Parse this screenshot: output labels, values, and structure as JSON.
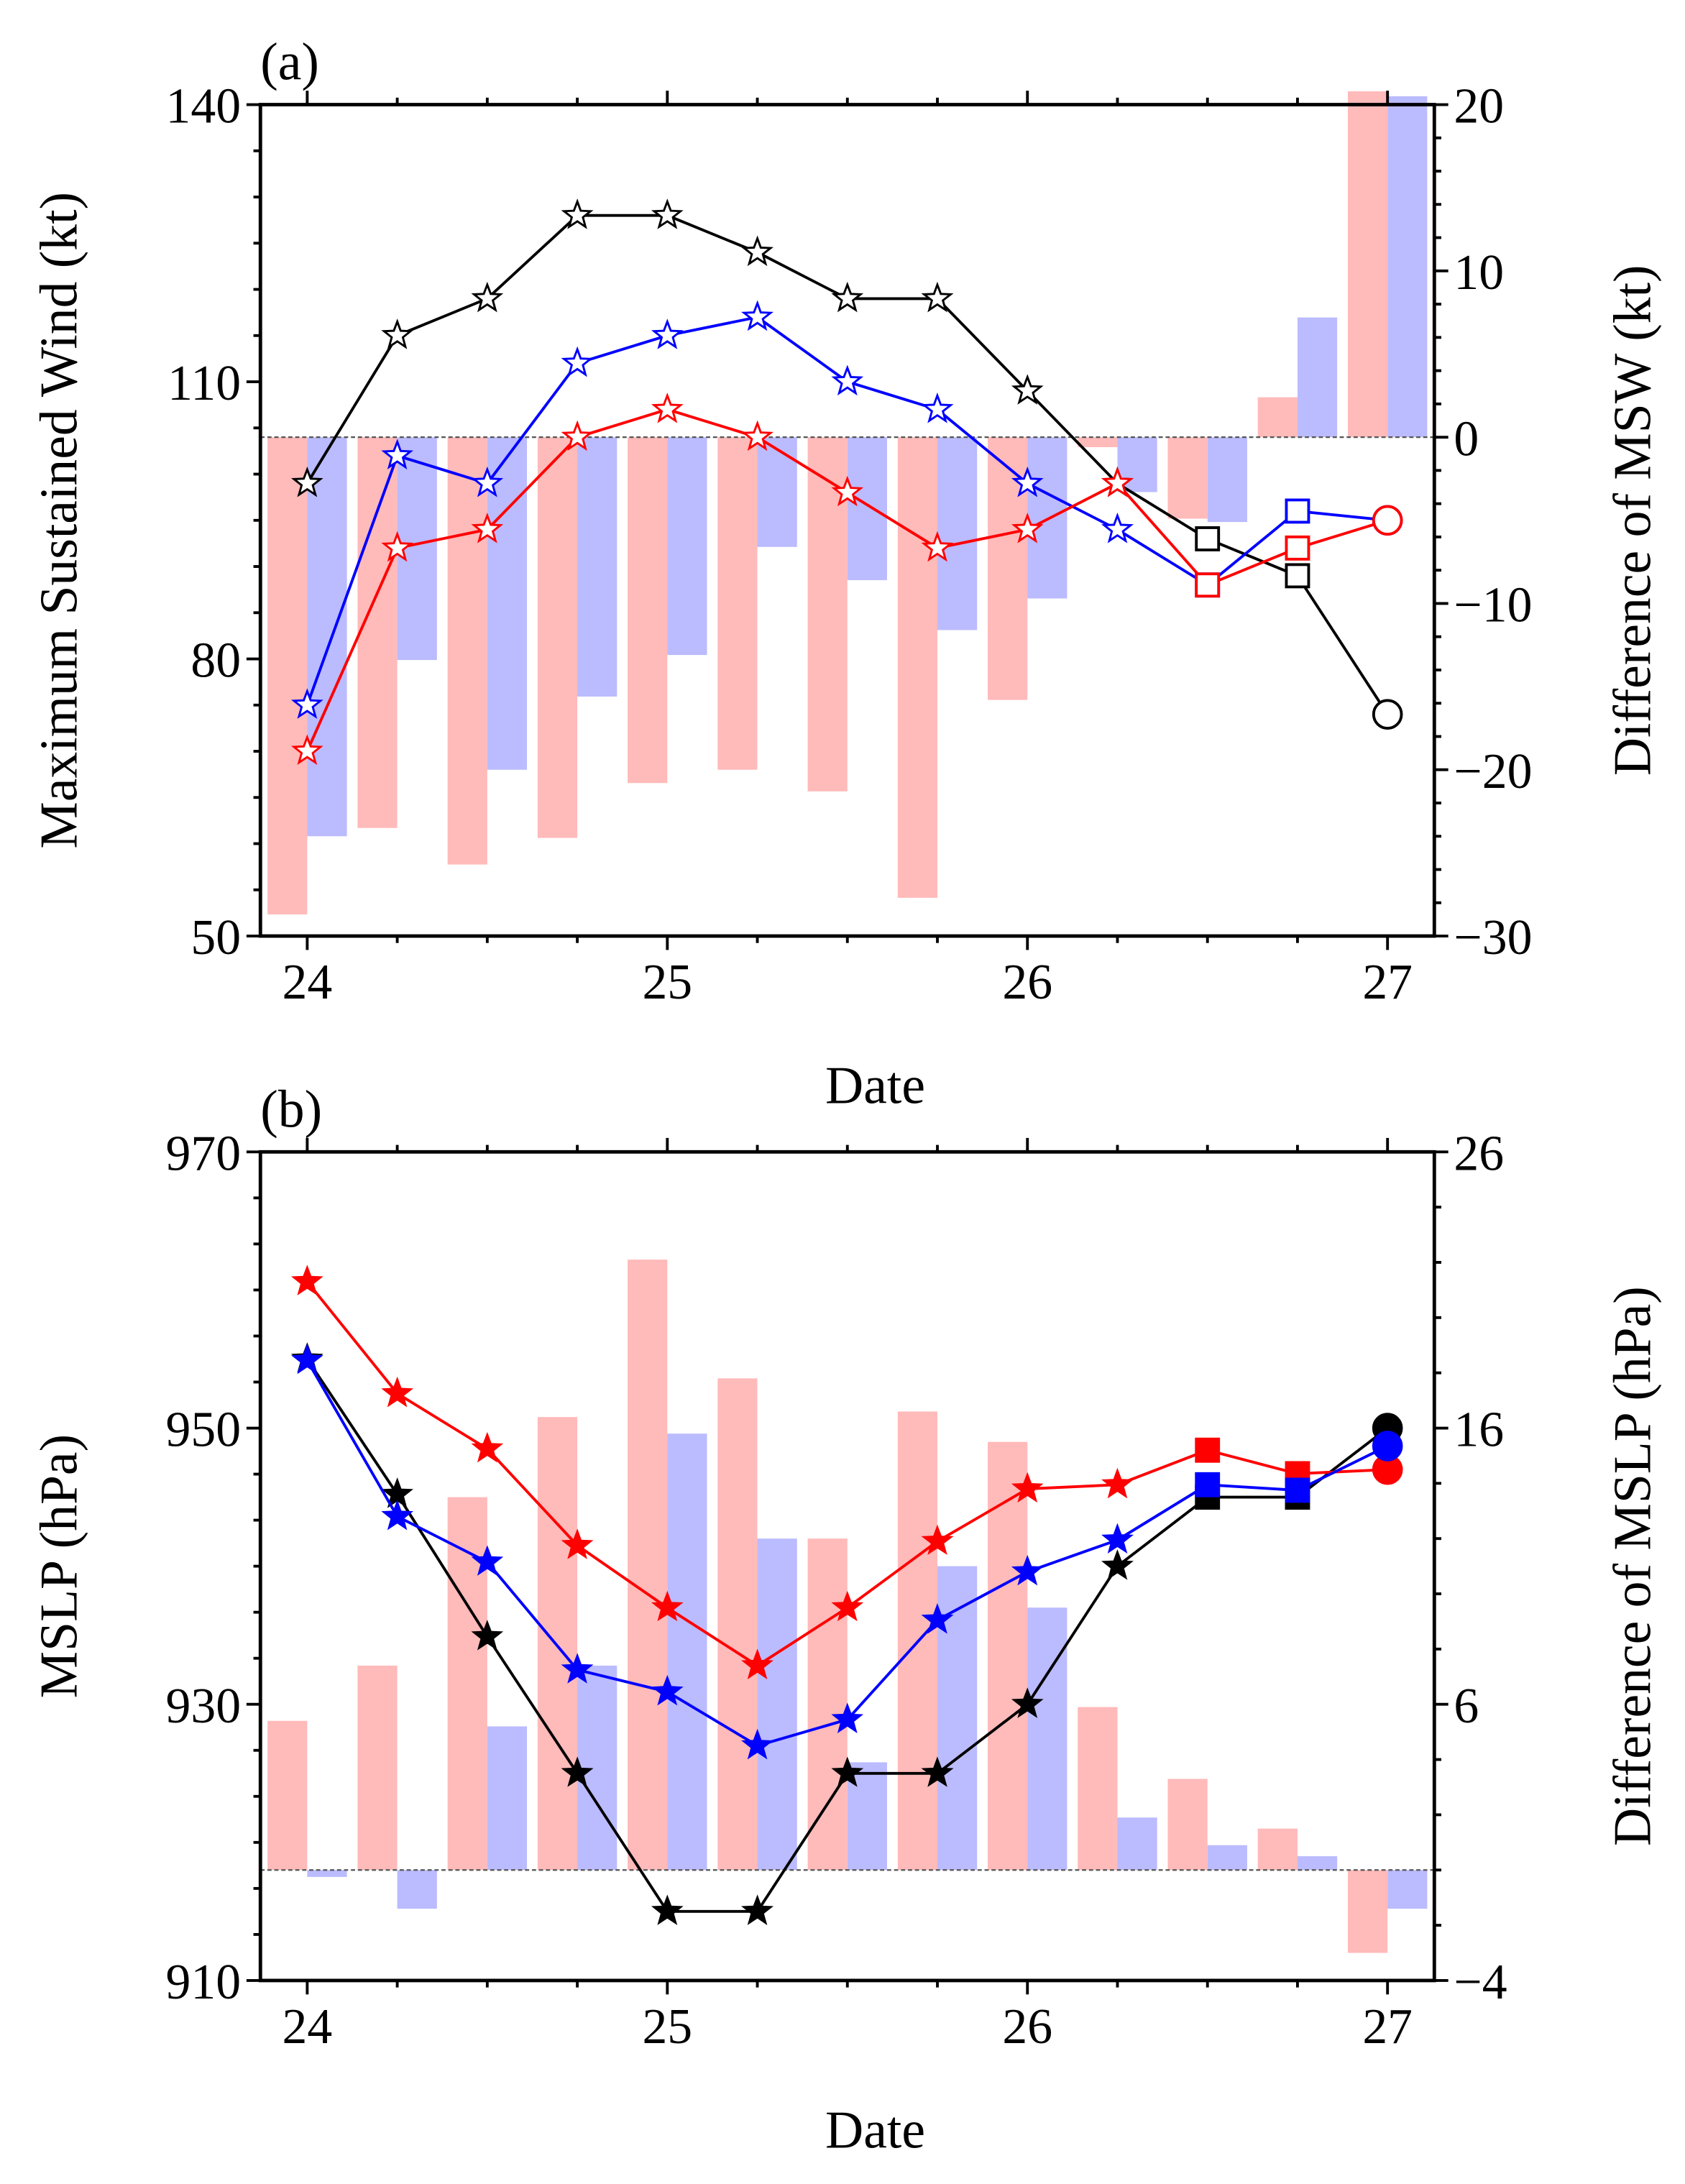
{
  "chart_data": [
    {
      "type": "line+bar",
      "panel_label": "(a)",
      "xlabel": "Date",
      "ylabel": "Maximum Sustained Wind (kt)",
      "ylabel_right": "Difference of MSW (kt)",
      "xlim": [
        23.87,
        27.13
      ],
      "ylim": [
        50,
        140
      ],
      "ylim_right": [
        -30,
        20
      ],
      "xticks": [
        24,
        25,
        26,
        27
      ],
      "xtick_labels": [
        "24",
        "25",
        "26",
        "27"
      ],
      "yticks": [
        50,
        80,
        110,
        140
      ],
      "yticks_right": [
        -30,
        -20,
        -10,
        0,
        10,
        20
      ],
      "ytick_labels_right": [
        "−30",
        "−20",
        "−10",
        "0",
        "10",
        "20"
      ],
      "x": [
        24,
        24.25,
        24.5,
        24.75,
        25,
        25.25,
        25.5,
        25.75,
        26,
        26.25,
        26.5,
        26.75,
        27
      ],
      "marker_style": "hollow",
      "series": [
        {
          "name": "black",
          "color": "#000000",
          "values": [
            99,
            115,
            119,
            128,
            128,
            124,
            119,
            119,
            109,
            99,
            93,
            89,
            74
          ]
        },
        {
          "name": "blue",
          "color": "#0000ff",
          "values": [
            75,
            102,
            99,
            112,
            115,
            117,
            110,
            107,
            99,
            94,
            88,
            96,
            95
          ]
        },
        {
          "name": "red",
          "color": "#ff0000",
          "values": [
            70,
            92,
            94,
            104,
            107,
            104,
            98,
            92,
            94,
            99,
            88,
            92,
            95
          ]
        }
      ],
      "bar_series": [
        {
          "name": "red-diff",
          "color": "#ffbaba",
          "values": [
            -28.7,
            -23.5,
            -25.7,
            -24.1,
            -20.8,
            -20,
            -21.3,
            -27.7,
            -15.8,
            -0.6,
            -4.9,
            2.4,
            20.8
          ]
        },
        {
          "name": "blue-diff",
          "color": "#bbbbff",
          "values": [
            -24,
            -13.4,
            -20,
            -15.6,
            -13.1,
            -6.6,
            -8.6,
            -11.6,
            -9.7,
            -3.3,
            -5.1,
            7.2,
            20.5
          ]
        }
      ]
    },
    {
      "type": "line+bar",
      "panel_label": "(b)",
      "xlabel": "Date",
      "ylabel": "MSLP (hPa)",
      "ylabel_right": "Difference of MSLP (hPa)",
      "xlim": [
        23.87,
        27.13
      ],
      "ylim": [
        910,
        970
      ],
      "ylim_right": [
        -4,
        26
      ],
      "xticks": [
        24,
        25,
        26,
        27
      ],
      "xtick_labels": [
        "24",
        "25",
        "26",
        "27"
      ],
      "yticks": [
        910,
        930,
        950,
        970
      ],
      "yticks_right": [
        -4,
        6,
        16,
        26
      ],
      "ytick_labels_right": [
        "−4",
        "6",
        "16",
        "26"
      ],
      "x": [
        24,
        24.25,
        24.5,
        24.75,
        25,
        25.25,
        25.5,
        25.75,
        26,
        26.25,
        26.5,
        26.75,
        27
      ],
      "marker_style": "filled",
      "series": [
        {
          "name": "black",
          "color": "#000000",
          "values": [
            955,
            945.2,
            934.9,
            925,
            915,
            915,
            925,
            925,
            930,
            940,
            945,
            945,
            950
          ]
        },
        {
          "name": "red",
          "color": "#ff0000",
          "values": [
            960.6,
            952.5,
            948.5,
            941.5,
            937,
            932.8,
            937,
            941.8,
            945.6,
            945.9,
            948.4,
            946.7,
            947
          ]
        },
        {
          "name": "blue",
          "color": "#0000ff",
          "values": [
            954.9,
            943.6,
            940.3,
            932.5,
            930.9,
            927,
            928.9,
            936.1,
            939.6,
            941.9,
            945.9,
            945.5,
            948.7
          ]
        }
      ],
      "bar_series": [
        {
          "name": "red-diff",
          "color": "#ffbaba",
          "values": [
            5.4,
            7.4,
            13.5,
            16.4,
            22.1,
            17.8,
            12,
            16.6,
            15.5,
            5.9,
            3.3,
            1.5,
            -3
          ]
        },
        {
          "name": "blue-diff",
          "color": "#bbbbff",
          "values": [
            -0.25,
            -1.4,
            5.2,
            7.4,
            15.8,
            12,
            3.9,
            11,
            9.5,
            1.9,
            0.9,
            0.5,
            -1.4
          ]
        }
      ]
    }
  ]
}
